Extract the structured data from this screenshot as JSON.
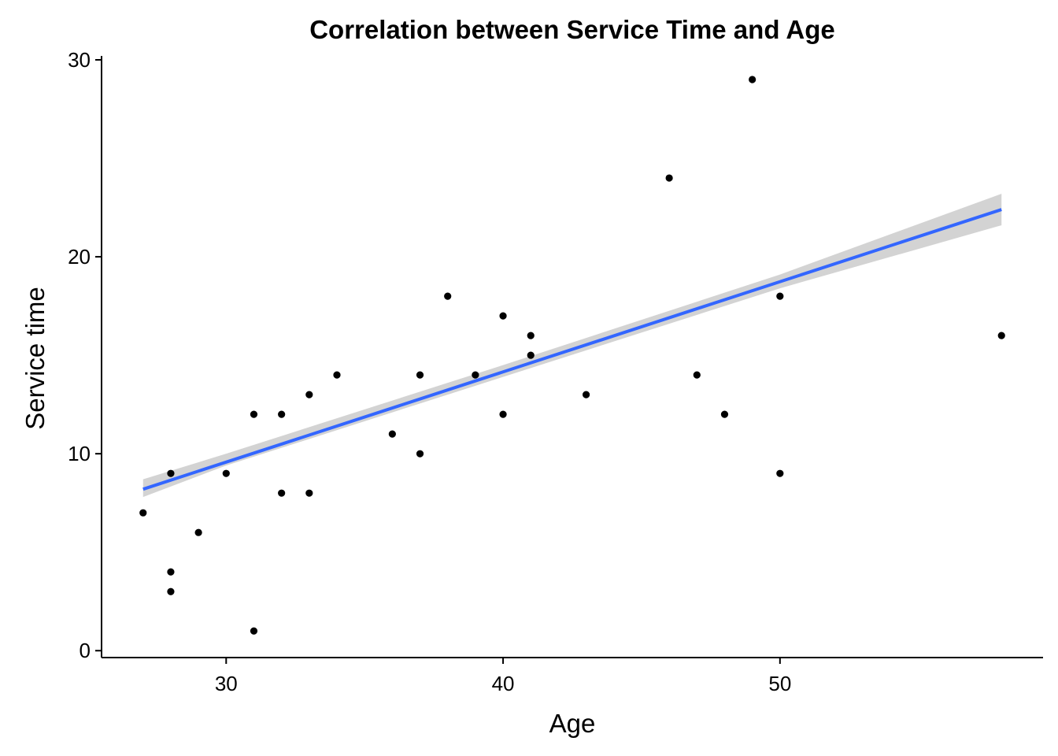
{
  "chart_data": {
    "type": "scatter",
    "title": "Correlation between Service Time and Age",
    "xlabel": "Age",
    "ylabel": "Service time",
    "xlim": [
      25.5,
      59.5
    ],
    "ylim": [
      -0.35,
      30.2
    ],
    "x_ticks": [
      30,
      40,
      50
    ],
    "y_ticks": [
      0,
      10,
      20,
      30
    ],
    "x_tick_labels": [
      "30",
      "40",
      "50"
    ],
    "y_tick_labels": [
      "0",
      "10",
      "20",
      "30"
    ],
    "grid": false,
    "points": [
      {
        "x": 27,
        "y": 7
      },
      {
        "x": 28,
        "y": 9
      },
      {
        "x": 28,
        "y": 4
      },
      {
        "x": 28,
        "y": 3
      },
      {
        "x": 29,
        "y": 6
      },
      {
        "x": 30,
        "y": 9
      },
      {
        "x": 31,
        "y": 12
      },
      {
        "x": 31,
        "y": 1
      },
      {
        "x": 32,
        "y": 12
      },
      {
        "x": 32,
        "y": 8
      },
      {
        "x": 33,
        "y": 13
      },
      {
        "x": 33,
        "y": 8
      },
      {
        "x": 34,
        "y": 14
      },
      {
        "x": 36,
        "y": 11
      },
      {
        "x": 37,
        "y": 14
      },
      {
        "x": 37,
        "y": 10
      },
      {
        "x": 38,
        "y": 18
      },
      {
        "x": 39,
        "y": 14
      },
      {
        "x": 40,
        "y": 17
      },
      {
        "x": 40,
        "y": 12
      },
      {
        "x": 41,
        "y": 16
      },
      {
        "x": 41,
        "y": 15
      },
      {
        "x": 43,
        "y": 13
      },
      {
        "x": 46,
        "y": 24
      },
      {
        "x": 47,
        "y": 14
      },
      {
        "x": 48,
        "y": 12
      },
      {
        "x": 49,
        "y": 29
      },
      {
        "x": 50,
        "y": 18
      },
      {
        "x": 50,
        "y": 9
      },
      {
        "x": 58,
        "y": 16
      }
    ],
    "trend_line": {
      "x": [
        27,
        58
      ],
      "y": [
        8.2,
        22.4
      ],
      "ci_lower": [
        7.8,
        21.6
      ],
      "ci_upper": [
        8.7,
        23.2
      ],
      "ci_at_x": [
        30,
        40,
        50
      ],
      "ci_lower_mid": [
        9.4,
        13.9,
        18.4
      ],
      "ci_upper_mid": [
        10.0,
        14.5,
        19.1
      ]
    },
    "colors": {
      "point": "#000000",
      "line": "#3366FF",
      "ribbon": "#D3D3D3",
      "axis": "#000000"
    }
  }
}
